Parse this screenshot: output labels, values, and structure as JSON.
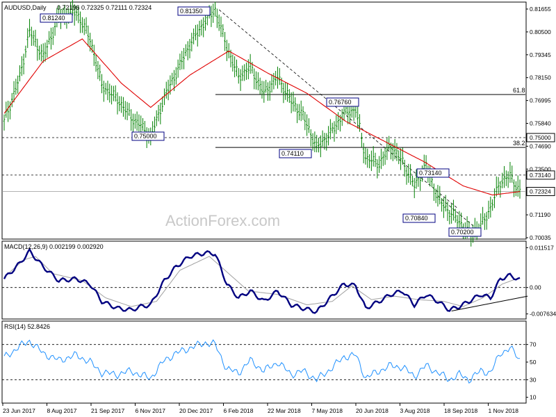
{
  "chart_data": [
    {
      "type": "line",
      "panel": "price",
      "title": "AUDUSD,Daily",
      "ohlc_label": "0.72196 0.72325 0.72111 0.72324",
      "y_ticks": [
        "0.81655",
        "0.80500",
        "0.79345",
        "0.78150",
        "0.76995",
        "0.75840",
        "0.74690",
        "0.73500",
        "0.72324",
        "0.71190",
        "0.70035"
      ],
      "ylim": [
        0.7003,
        0.8166
      ],
      "marked_labels": [
        {
          "text": "0.81240"
        },
        {
          "text": "0.81350"
        },
        {
          "text": "0.75000"
        },
        {
          "text": "0.74110"
        },
        {
          "text": "0.76760"
        },
        {
          "text": "0.73140"
        },
        {
          "text": "0.70840"
        },
        {
          "text": "0.70200"
        }
      ],
      "right_markers": [
        {
          "text": "0.75000",
          "value": 0.75
        },
        {
          "text": "0.73140",
          "value": 0.7314
        },
        {
          "text": "0.72324",
          "value": 0.72324
        }
      ],
      "fib_levels": [
        {
          "label": "61.8",
          "value": 0.7714
        },
        {
          "label": "38.2",
          "value": 0.7451
        }
      ],
      "price_anchors": [
        [
          0,
          0.758
        ],
        [
          8,
          0.78
        ],
        [
          13,
          0.803
        ],
        [
          20,
          0.79
        ],
        [
          28,
          0.81
        ],
        [
          37,
          0.8124
        ],
        [
          44,
          0.799
        ],
        [
          50,
          0.776
        ],
        [
          58,
          0.769
        ],
        [
          65,
          0.76
        ],
        [
          70,
          0.756
        ],
        [
          75,
          0.75
        ],
        [
          82,
          0.77
        ],
        [
          88,
          0.782
        ],
        [
          95,
          0.796
        ],
        [
          103,
          0.808
        ],
        [
          108,
          0.8135
        ],
        [
          114,
          0.795
        ],
        [
          120,
          0.78
        ],
        [
          126,
          0.785
        ],
        [
          133,
          0.772
        ],
        [
          140,
          0.78
        ],
        [
          147,
          0.768
        ],
        [
          153,
          0.761
        ],
        [
          160,
          0.745
        ],
        [
          167,
          0.752
        ],
        [
          174,
          0.762
        ],
        [
          180,
          0.764
        ],
        [
          185,
          0.74
        ],
        [
          192,
          0.737
        ],
        [
          198,
          0.746
        ],
        [
          204,
          0.738
        ],
        [
          210,
          0.726
        ],
        [
          216,
          0.736
        ],
        [
          222,
          0.72
        ],
        [
          228,
          0.713
        ],
        [
          233,
          0.7084
        ],
        [
          238,
          0.702
        ],
        [
          244,
          0.706
        ],
        [
          249,
          0.715
        ],
        [
          254,
          0.728
        ],
        [
          259,
          0.731
        ],
        [
          264,
          0.7232
        ]
      ],
      "sma_anchors": [
        [
          0,
          0.762
        ],
        [
          20,
          0.788
        ],
        [
          40,
          0.799
        ],
        [
          60,
          0.777
        ],
        [
          75,
          0.765
        ],
        [
          95,
          0.781
        ],
        [
          115,
          0.793
        ],
        [
          135,
          0.782
        ],
        [
          155,
          0.772
        ],
        [
          175,
          0.758
        ],
        [
          195,
          0.748
        ],
        [
          215,
          0.738
        ],
        [
          235,
          0.726
        ],
        [
          250,
          0.7215
        ],
        [
          264,
          0.7232
        ]
      ],
      "x_ticks": [
        "23 Jun 2017",
        "8 Aug 2017",
        "21 Sep 2017",
        "6 Nov 2017",
        "20 Dec 2017",
        "6 Feb 2018",
        "22 Mar 2018",
        "7 May 2018",
        "20 Jun 2018",
        "3 Aug 2018",
        "18 Sep 2018",
        "1 Nov 2018"
      ],
      "colors": {
        "price": "#008000",
        "sma": "#e00000"
      }
    },
    {
      "type": "line",
      "panel": "macd",
      "title": "MACD(12,26,9) 0.002199 0.002920",
      "y_ticks": [
        "0.011517",
        "0.00",
        "-0.007634"
      ],
      "ylim": [
        -0.0085,
        0.0128
      ],
      "zero": 0,
      "macd_anchors": [
        [
          0,
          0.0025
        ],
        [
          8,
          0.007
        ],
        [
          13,
          0.0105
        ],
        [
          20,
          0.006
        ],
        [
          28,
          0.002
        ],
        [
          37,
          0.0025
        ],
        [
          44,
          0.001
        ],
        [
          50,
          -0.004
        ],
        [
          58,
          -0.006
        ],
        [
          65,
          -0.0065
        ],
        [
          70,
          -0.0055
        ],
        [
          75,
          -0.005
        ],
        [
          82,
          0.002
        ],
        [
          88,
          0.006
        ],
        [
          95,
          0.009
        ],
        [
          103,
          0.01
        ],
        [
          108,
          0.0098
        ],
        [
          114,
          0.001
        ],
        [
          120,
          -0.003
        ],
        [
          126,
          -0.001
        ],
        [
          133,
          -0.004
        ],
        [
          140,
          -0.001
        ],
        [
          147,
          -0.005
        ],
        [
          153,
          -0.006
        ],
        [
          160,
          -0.007
        ],
        [
          167,
          -0.003
        ],
        [
          174,
          0.001
        ],
        [
          180,
          0.0005
        ],
        [
          185,
          -0.006
        ],
        [
          192,
          -0.004
        ],
        [
          198,
          -0.002
        ],
        [
          204,
          -0.001
        ],
        [
          210,
          -0.005
        ],
        [
          216,
          -0.002
        ],
        [
          222,
          -0.004
        ],
        [
          228,
          -0.0065
        ],
        [
          233,
          -0.0055
        ],
        [
          238,
          -0.004
        ],
        [
          244,
          -0.002
        ],
        [
          249,
          -0.003
        ],
        [
          254,
          0.0025
        ],
        [
          259,
          0.0035
        ],
        [
          264,
          0.0022
        ]
      ],
      "signal_anchors": [
        [
          0,
          0.003
        ],
        [
          10,
          0.008
        ],
        [
          16,
          0.009
        ],
        [
          25,
          0.004
        ],
        [
          40,
          0.002
        ],
        [
          52,
          -0.003
        ],
        [
          65,
          -0.0055
        ],
        [
          78,
          -0.004
        ],
        [
          90,
          0.005
        ],
        [
          105,
          0.009
        ],
        [
          115,
          0.004
        ],
        [
          125,
          -0.001
        ],
        [
          140,
          -0.002
        ],
        [
          155,
          -0.005
        ],
        [
          168,
          -0.004
        ],
        [
          178,
          0.0005
        ],
        [
          188,
          -0.0035
        ],
        [
          200,
          -0.0025
        ],
        [
          212,
          -0.0035
        ],
        [
          225,
          -0.004
        ],
        [
          235,
          -0.0055
        ],
        [
          245,
          -0.003
        ],
        [
          255,
          0.001
        ],
        [
          264,
          0.0029
        ]
      ],
      "trendline": [
        [
          229,
          -0.0068
        ],
        [
          268,
          -0.0025
        ]
      ],
      "colors": {
        "macd": "#000080",
        "signal": "#a0a0a0"
      }
    },
    {
      "type": "line",
      "panel": "rsi",
      "title": "RSI(14) 52.8426",
      "y_ticks": [
        "70",
        "50",
        "30",
        "10"
      ],
      "ylim": [
        5,
        95
      ],
      "levels": [
        70,
        30
      ],
      "rsi_anchors": [
        [
          0,
          55
        ],
        [
          8,
          68
        ],
        [
          13,
          74
        ],
        [
          20,
          60
        ],
        [
          28,
          52
        ],
        [
          37,
          58
        ],
        [
          44,
          50
        ],
        [
          50,
          38
        ],
        [
          58,
          36
        ],
        [
          65,
          40
        ],
        [
          70,
          35
        ],
        [
          75,
          32
        ],
        [
          82,
          52
        ],
        [
          88,
          60
        ],
        [
          95,
          66
        ],
        [
          103,
          72
        ],
        [
          108,
          70
        ],
        [
          114,
          42
        ],
        [
          120,
          38
        ],
        [
          126,
          52
        ],
        [
          133,
          40
        ],
        [
          140,
          50
        ],
        [
          147,
          36
        ],
        [
          153,
          40
        ],
        [
          160,
          30
        ],
        [
          167,
          42
        ],
        [
          174,
          56
        ],
        [
          180,
          58
        ],
        [
          185,
          32
        ],
        [
          192,
          40
        ],
        [
          198,
          46
        ],
        [
          204,
          44
        ],
        [
          210,
          34
        ],
        [
          216,
          46
        ],
        [
          222,
          38
        ],
        [
          228,
          30
        ],
        [
          233,
          36
        ],
        [
          238,
          30
        ],
        [
          244,
          40
        ],
        [
          249,
          38
        ],
        [
          254,
          60
        ],
        [
          259,
          66
        ],
        [
          264,
          52.8
        ]
      ],
      "colors": {
        "rsi": "#1e90ff"
      }
    }
  ],
  "watermark": "ActionForex.com"
}
